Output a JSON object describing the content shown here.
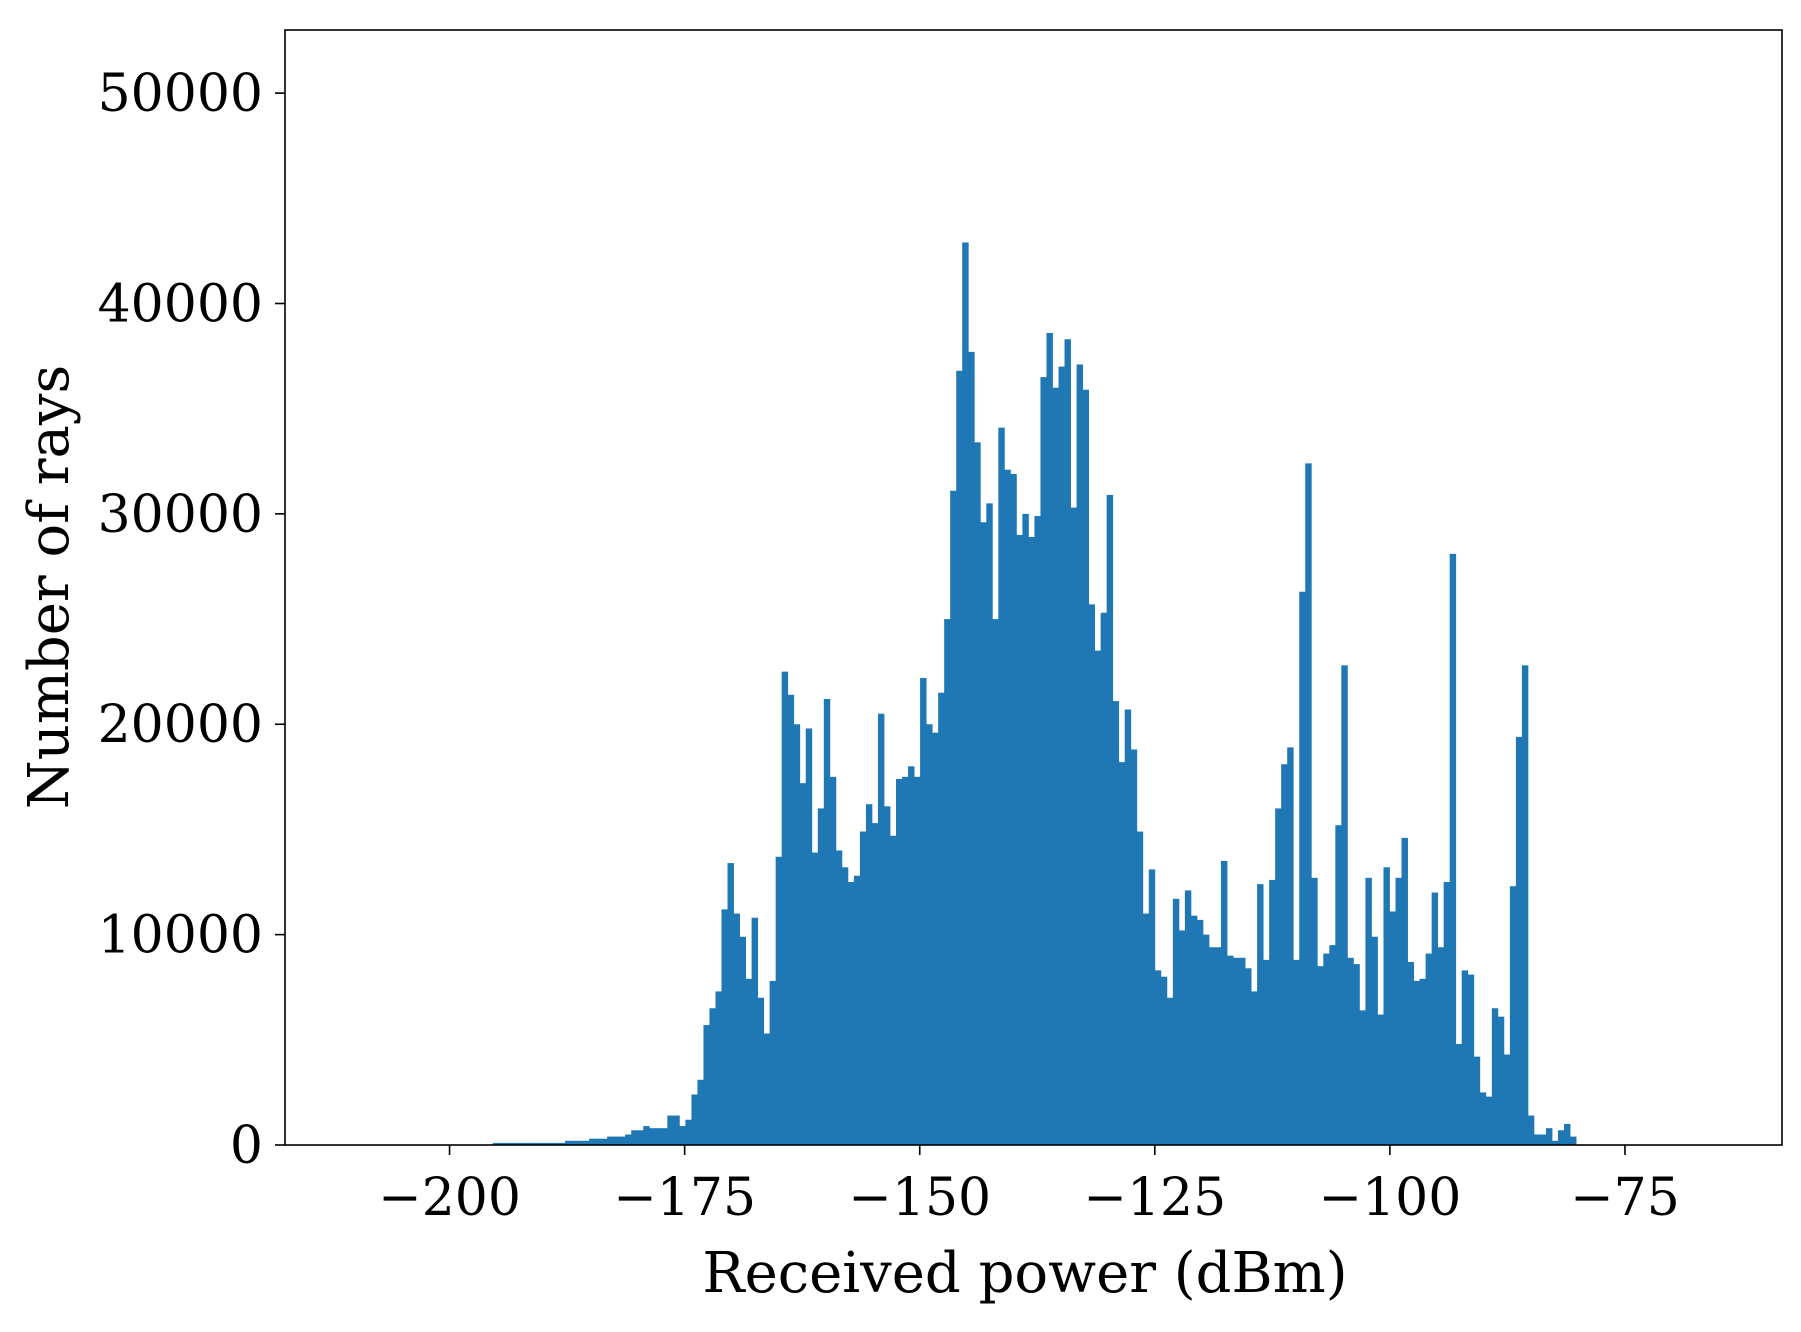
{
  "chart_data": {
    "type": "bar",
    "subtype": "histogram",
    "xlabel": "Received power (dBm)",
    "ylabel": "Number of rays",
    "xlim": [
      -217.5,
      -58.3
    ],
    "ylim": [
      0,
      53000
    ],
    "grid": false,
    "bar_color": "#1f77b4",
    "x_ticks": [
      -200,
      -175,
      -150,
      -125,
      -100,
      -75
    ],
    "x_tick_labels": [
      "−200",
      "−175",
      "−150",
      "−125",
      "−100",
      "−75"
    ],
    "y_ticks": [
      0,
      10000,
      20000,
      30000,
      40000,
      50000
    ],
    "y_tick_labels": [
      "0",
      "10000",
      "20000",
      "30000",
      "40000",
      "50000"
    ],
    "bins": {
      "start": -195.4,
      "width": 0.64,
      "counts": [
        100,
        100,
        100,
        100,
        100,
        100,
        100,
        100,
        100,
        100,
        100,
        100,
        200,
        200,
        200,
        200,
        300,
        300,
        300,
        400,
        400,
        400,
        500,
        700,
        700,
        900,
        800,
        800,
        800,
        1400,
        1400,
        900,
        1200,
        2400,
        3100,
        5700,
        6500,
        7300,
        11200,
        13400,
        11000,
        9900,
        7900,
        10800,
        7000,
        5300,
        7800,
        13700,
        22500,
        21400,
        20000,
        17200,
        19800,
        13900,
        16000,
        21200,
        17500,
        14000,
        13200,
        12500,
        12800,
        14900,
        16200,
        15300,
        20500,
        16100,
        14700,
        17400,
        17500,
        18000,
        17500,
        22200,
        20000,
        19600,
        21500,
        25000,
        31100,
        36800,
        42900,
        37700,
        33400,
        29600,
        30500,
        25000,
        34100,
        32100,
        31900,
        29000,
        30000,
        28900,
        29900,
        36500,
        38600,
        36000,
        37000,
        38300,
        30300,
        37100,
        35900,
        25700,
        23500,
        25300,
        30900,
        21100,
        18200,
        20700,
        18800,
        14900,
        11000,
        13100,
        8300,
        8000,
        7000,
        11700,
        10200,
        12100,
        10900,
        10700,
        10000,
        9400,
        9400,
        13500,
        9000,
        8900,
        8900,
        8400,
        7300,
        12400,
        8800,
        12600,
        16000,
        18100,
        18900,
        8800,
        26300,
        32400,
        12700,
        8500,
        9100,
        9500,
        15200,
        22800,
        8900,
        8600,
        6400,
        12700,
        9900,
        6200,
        13200,
        11100,
        12700,
        14600,
        8700,
        7800,
        7900,
        9100,
        12000,
        9400,
        12500,
        28100,
        4800,
        8300,
        8100,
        4200,
        2500,
        2300,
        6500,
        6100,
        4300,
        12300,
        19400,
        22800,
        1400,
        500,
        500,
        800,
        200,
        700,
        1000,
        400
      ]
    }
  }
}
